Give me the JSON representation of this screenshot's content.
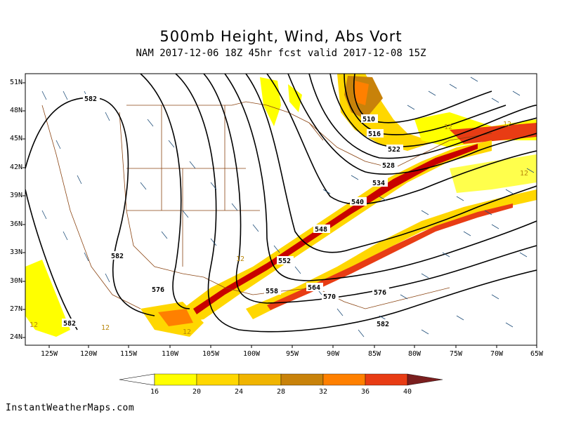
{
  "title": "500mb Height, Wind, Abs Vort",
  "subtitle": "NAM 2017-12-06 18Z 45hr fcst valid 2017-12-08 15Z",
  "footer": "InstantWeatherMaps.com",
  "lat_labels": [
    "51N",
    "48N",
    "45N",
    "42N",
    "39N",
    "36N",
    "33N",
    "30N",
    "27N",
    "24N"
  ],
  "lon_labels": [
    "125W",
    "120W",
    "115W",
    "110W",
    "105W",
    "100W",
    "95W",
    "90W",
    "85W",
    "80W",
    "75W",
    "70W",
    "65W"
  ],
  "colorbar": {
    "ticks": [
      "16",
      "20",
      "24",
      "28",
      "32",
      "36",
      "40"
    ],
    "colors": [
      "#ffff00",
      "#ffd700",
      "#f0b400",
      "#c8820a",
      "#ff8000",
      "#e83c14",
      "#c80000",
      "#7a1e1e"
    ]
  },
  "contour_labels": [
    "582",
    "582",
    "582",
    "576",
    "576",
    "570",
    "564",
    "558",
    "552",
    "548",
    "540",
    "534",
    "528",
    "522",
    "516",
    "510",
    "582"
  ],
  "vort_labels": [
    "12",
    "12",
    "12",
    "12",
    "12",
    "12",
    "12"
  ]
}
